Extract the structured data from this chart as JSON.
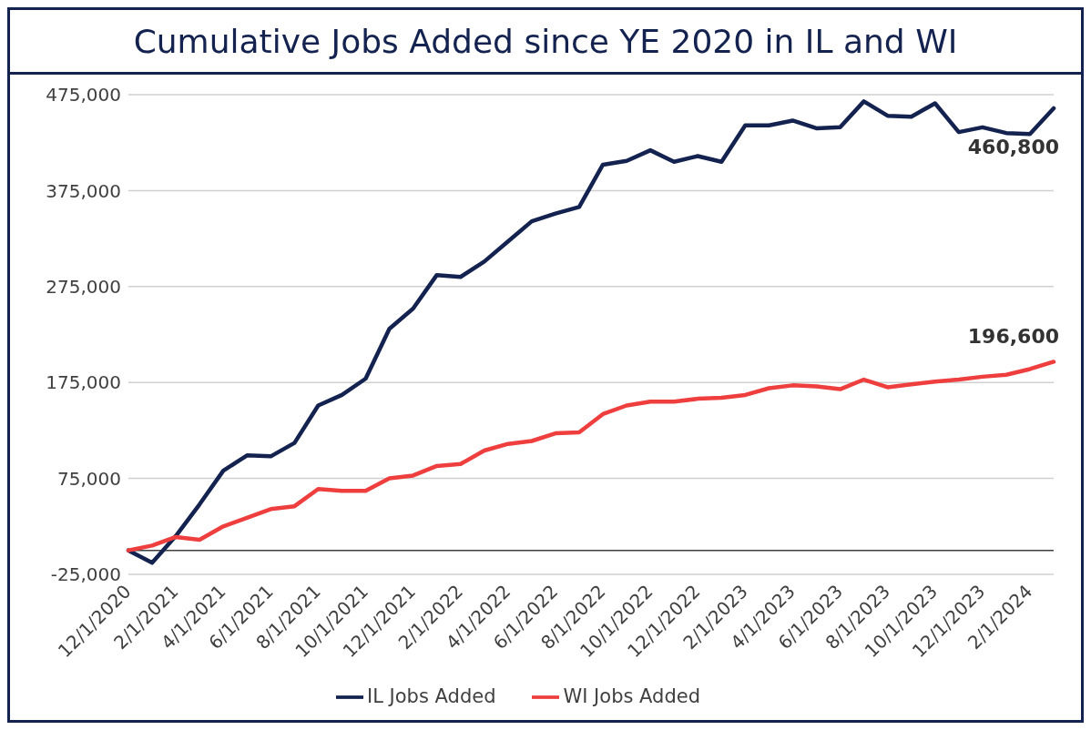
{
  "chart_data": {
    "type": "line",
    "title": "Cumulative Jobs Added since YE 2020 in IL and WI",
    "categories": [
      "12/1/2020",
      null,
      "2/1/2021",
      null,
      "4/1/2021",
      null,
      "6/1/2021",
      null,
      "8/1/2021",
      null,
      "10/1/2021",
      null,
      "12/1/2021",
      null,
      "2/1/2022",
      null,
      "4/1/2022",
      null,
      "6/1/2022",
      null,
      "8/1/2022",
      null,
      "10/1/2022",
      null,
      "12/1/2022",
      null,
      "2/1/2023",
      null,
      "4/1/2023",
      null,
      "6/1/2023",
      null,
      "8/1/2023",
      null,
      "10/1/2023",
      null,
      "12/1/2023",
      null,
      "2/1/2024",
      null
    ],
    "series": [
      {
        "name": "IL Jobs Added",
        "color": "#13224f",
        "values": [
          0,
          -13000,
          15000,
          48000,
          83000,
          99000,
          98000,
          112000,
          151000,
          162000,
          179000,
          231000,
          252000,
          287000,
          285000,
          301000,
          322000,
          343000,
          351000,
          358000,
          402000,
          406000,
          417000,
          405000,
          411000,
          405000,
          443000,
          443000,
          448000,
          440000,
          441000,
          468000,
          453000,
          452000,
          466000,
          436000,
          441000,
          435000,
          434000,
          460800
        ],
        "value_labels": [
          null,
          null,
          null,
          null,
          null,
          null,
          null,
          null,
          null,
          null,
          null,
          null,
          null,
          null,
          null,
          null,
          null,
          null,
          null,
          null,
          null,
          null,
          null,
          null,
          null,
          null,
          null,
          null,
          null,
          null,
          null,
          null,
          null,
          null,
          null,
          null,
          null,
          null,
          null,
          "460,800"
        ]
      },
      {
        "name": "WI Jobs Added",
        "color": "#ef3e3e",
        "values": [
          0,
          5000,
          14000,
          11000,
          25000,
          34000,
          43000,
          46000,
          64000,
          62000,
          62000,
          75000,
          78000,
          88000,
          90000,
          104000,
          111000,
          114000,
          122000,
          123000,
          142000,
          151000,
          155000,
          155000,
          158000,
          159000,
          162000,
          169000,
          172000,
          171000,
          168000,
          178000,
          170000,
          173000,
          176000,
          178000,
          181000,
          183000,
          189000,
          196600
        ],
        "value_labels": [
          null,
          null,
          null,
          null,
          null,
          null,
          null,
          null,
          null,
          null,
          null,
          null,
          null,
          null,
          null,
          null,
          null,
          null,
          null,
          null,
          null,
          null,
          null,
          null,
          null,
          null,
          null,
          null,
          null,
          null,
          null,
          null,
          null,
          null,
          null,
          null,
          null,
          null,
          null,
          "196,600"
        ]
      }
    ],
    "ylim": [
      -25000,
      475000
    ],
    "yticks": [
      {
        "value": -25000,
        "label": "-25,000"
      },
      {
        "value": 75000,
        "label": "75,000"
      },
      {
        "value": 175000,
        "label": "175,000"
      },
      {
        "value": 275000,
        "label": "275,000"
      },
      {
        "value": 375000,
        "label": "375,000"
      },
      {
        "value": 475000,
        "label": "475,000"
      }
    ],
    "ref_lines": [
      {
        "axis": "y",
        "value": 0,
        "color": "#404040"
      }
    ],
    "grid": "y",
    "legend": "bottom",
    "marker": "none",
    "line_style": "solid"
  }
}
